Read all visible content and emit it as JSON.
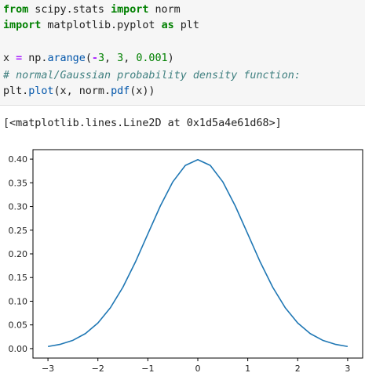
{
  "code": {
    "line1": {
      "kw_from": "from",
      "module": " scipy.stats ",
      "kw_import": "import",
      "name": " norm"
    },
    "line2": {
      "kw_import": "import",
      "module": " matplotlib.pyplot ",
      "kw_as": "as",
      "alias": " plt"
    },
    "line4": {
      "var": "x ",
      "eq": "=",
      "call_obj": " np.",
      "func": "arange",
      "args_open": "(",
      "neg": "-",
      "n1": "3",
      "sep1": ", ",
      "n2": "3",
      "sep2": ", ",
      "n3": "0.001",
      "close": ")"
    },
    "line5": {
      "comment": "# normal/Gaussian probability density function:"
    },
    "line6": {
      "obj": "plt.",
      "func": "plot",
      "mid": "(x, norm.",
      "func2": "pdf",
      "end": "(x))"
    }
  },
  "output": {
    "text": "[<matplotlib.lines.Line2D at 0x1d5a4e61d68>]"
  },
  "chart_data": {
    "type": "line",
    "title": "",
    "xlabel": "",
    "ylabel": "",
    "xlim": [
      -3.3,
      3.3
    ],
    "ylim": [
      -0.02,
      0.42
    ],
    "xticks": [
      "−3",
      "−2",
      "−1",
      "0",
      "1",
      "2",
      "3"
    ],
    "xtick_values": [
      -3,
      -2,
      -1,
      0,
      1,
      2,
      3
    ],
    "yticks": [
      "0.00",
      "0.05",
      "0.10",
      "0.15",
      "0.20",
      "0.25",
      "0.30",
      "0.35",
      "0.40"
    ],
    "ytick_values": [
      0.0,
      0.05,
      0.1,
      0.15,
      0.2,
      0.25,
      0.3,
      0.35,
      0.4
    ],
    "series": [
      {
        "x": [
          -3.0,
          -2.75,
          -2.5,
          -2.25,
          -2.0,
          -1.75,
          -1.5,
          -1.25,
          -1.0,
          -0.75,
          -0.5,
          -0.25,
          0.0,
          0.25,
          0.5,
          0.75,
          1.0,
          1.25,
          1.5,
          1.75,
          2.0,
          2.25,
          2.5,
          2.75,
          3.0
        ],
        "values": [
          0.0044,
          0.0091,
          0.0175,
          0.0317,
          0.054,
          0.0863,
          0.1295,
          0.1826,
          0.242,
          0.3011,
          0.3521,
          0.3867,
          0.3989,
          0.3867,
          0.3521,
          0.3011,
          0.242,
          0.1826,
          0.1295,
          0.0863,
          0.054,
          0.0317,
          0.0175,
          0.0091,
          0.0044
        ],
        "color": "#1f77b4"
      }
    ],
    "grid": false
  }
}
